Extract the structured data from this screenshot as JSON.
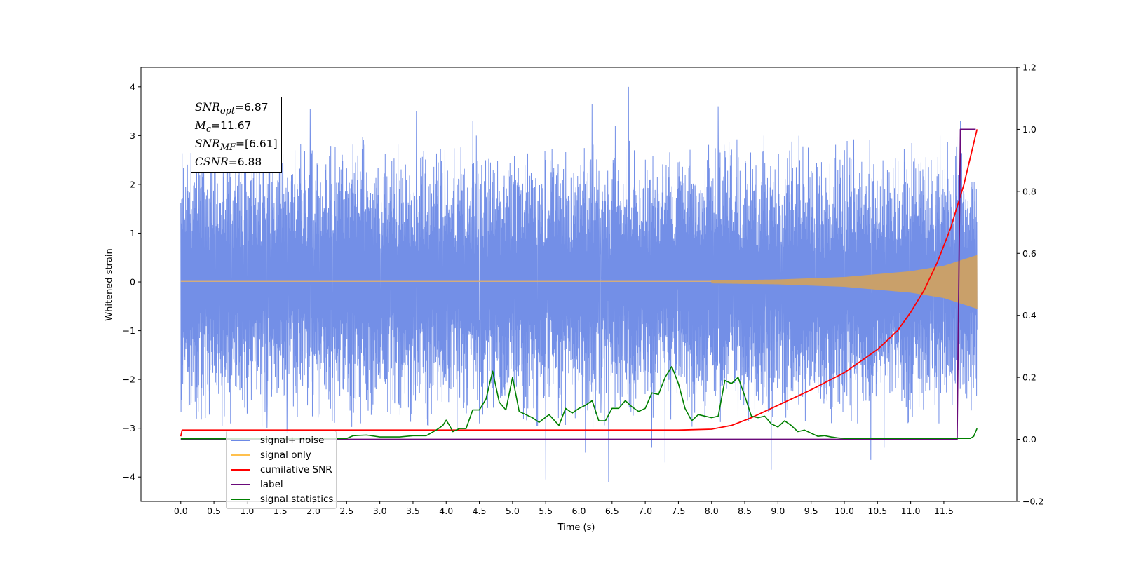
{
  "chart_data": {
    "type": "line",
    "xlabel": "Time (s)",
    "ylabel": "Whitened strain",
    "xlim": [
      -0.6,
      12.6
    ],
    "ylim": [
      -4.5,
      4.4
    ],
    "y2lim": [
      -0.2,
      1.2
    ],
    "x_ticks": [
      "0.0",
      "0.5",
      "1.0",
      "1.5",
      "2.0",
      "2.5",
      "3.0",
      "3.5",
      "4.0",
      "4.5",
      "5.0",
      "5.5",
      "6.0",
      "6.5",
      "7.0",
      "7.5",
      "8.0",
      "8.5",
      "9.0",
      "9.5",
      "10.0",
      "10.5",
      "11.0",
      "11.5"
    ],
    "y_ticks": [
      "4",
      "3",
      "2",
      "1",
      "0",
      "−1",
      "−2",
      "−3",
      "−4"
    ],
    "y2_ticks": [
      "1.2",
      "1.0",
      "0.8",
      "0.6",
      "0.4",
      "0.2",
      "0.0",
      "−0.2"
    ],
    "annotation": {
      "snr_opt": {
        "label": "SNR",
        "sub": "opt",
        "value": "=6.87"
      },
      "mc": {
        "label": "M",
        "sub": "c",
        "value": "=11.67"
      },
      "snr_mf": {
        "label": "SNR",
        "sub": "MF",
        "value": "=[6.61]"
      },
      "csnr": {
        "label": "CSNR",
        "value": "=6.88"
      }
    },
    "legend_position": "lower-left",
    "legend": [
      {
        "label": "signal+ noise",
        "color": "#6c89e6"
      },
      {
        "label": "signal only",
        "color": "#ffc04d"
      },
      {
        "label": "cumilative SNR",
        "color": "#ff0000"
      },
      {
        "label": "label",
        "color": "#6a0a7a"
      },
      {
        "label": "signal statistics",
        "color": "#008000"
      }
    ],
    "series": [
      {
        "name": "signal+ noise",
        "axis": "left",
        "t_range": [
          0.0,
          12.0
        ],
        "approx_amplitude": 2.5,
        "spikes": [
          [
            0.75,
            -2.9
          ],
          [
            1.0,
            -2.7
          ],
          [
            1.3,
            -3.0
          ],
          [
            1.6,
            -3.1
          ],
          [
            1.95,
            3.55
          ],
          [
            3.55,
            3.5
          ],
          [
            4.4,
            3.3
          ],
          [
            4.5,
            -2.9
          ],
          [
            5.5,
            -4.05
          ],
          [
            6.1,
            -3.5
          ],
          [
            6.45,
            -4.1
          ],
          [
            6.55,
            3.2
          ],
          [
            6.75,
            4.0
          ],
          [
            6.2,
            3.65
          ],
          [
            7.1,
            -3.4
          ],
          [
            7.3,
            -3.7
          ],
          [
            8.1,
            3.6
          ],
          [
            8.9,
            -3.85
          ],
          [
            10.2,
            -2.9
          ],
          [
            10.4,
            3.6
          ],
          [
            10.4,
            -3.65
          ],
          [
            10.6,
            -3.4
          ],
          [
            11.75,
            3.3
          ]
        ]
      },
      {
        "name": "signal only",
        "axis": "left",
        "t_range": [
          0.0,
          12.0
        ],
        "envelope": [
          [
            0.0,
            0.01
          ],
          [
            6.0,
            0.02
          ],
          [
            8.0,
            0.03
          ],
          [
            9.0,
            0.05
          ],
          [
            10.0,
            0.1
          ],
          [
            11.0,
            0.22
          ],
          [
            11.5,
            0.33
          ],
          [
            12.0,
            0.55
          ]
        ]
      },
      {
        "name": "cumilative SNR",
        "axis": "right",
        "points": [
          [
            0.0,
            0.01
          ],
          [
            0.02,
            0.03
          ],
          [
            0.5,
            0.03
          ],
          [
            2.0,
            0.03
          ],
          [
            4.0,
            0.03
          ],
          [
            6.0,
            0.03
          ],
          [
            7.0,
            0.03
          ],
          [
            7.5,
            0.03
          ],
          [
            8.0,
            0.033
          ],
          [
            8.3,
            0.045
          ],
          [
            8.6,
            0.07
          ],
          [
            9.0,
            0.11
          ],
          [
            9.5,
            0.16
          ],
          [
            10.0,
            0.215
          ],
          [
            10.5,
            0.29
          ],
          [
            10.8,
            0.35
          ],
          [
            11.0,
            0.41
          ],
          [
            11.2,
            0.48
          ],
          [
            11.4,
            0.57
          ],
          [
            11.6,
            0.68
          ],
          [
            11.8,
            0.82
          ],
          [
            12.0,
            1.0
          ]
        ]
      },
      {
        "name": "label",
        "axis": "right",
        "points": [
          [
            0.0,
            0.0
          ],
          [
            11.65,
            0.0
          ],
          [
            11.7,
            0.0
          ],
          [
            11.75,
            1.0
          ],
          [
            11.98,
            1.0
          ]
        ]
      },
      {
        "name": "signal statistics",
        "axis": "right",
        "points": [
          [
            0.0,
            0.002
          ],
          [
            1.0,
            0.002
          ],
          [
            2.0,
            0.002
          ],
          [
            2.5,
            0.003
          ],
          [
            2.6,
            0.012
          ],
          [
            2.8,
            0.014
          ],
          [
            3.0,
            0.008
          ],
          [
            3.3,
            0.008
          ],
          [
            3.5,
            0.012
          ],
          [
            3.7,
            0.012
          ],
          [
            3.85,
            0.03
          ],
          [
            3.95,
            0.045
          ],
          [
            4.0,
            0.062
          ],
          [
            4.05,
            0.045
          ],
          [
            4.1,
            0.025
          ],
          [
            4.2,
            0.035
          ],
          [
            4.3,
            0.035
          ],
          [
            4.4,
            0.095
          ],
          [
            4.5,
            0.095
          ],
          [
            4.6,
            0.13
          ],
          [
            4.7,
            0.22
          ],
          [
            4.8,
            0.12
          ],
          [
            4.9,
            0.095
          ],
          [
            5.0,
            0.2
          ],
          [
            5.1,
            0.09
          ],
          [
            5.2,
            0.08
          ],
          [
            5.3,
            0.07
          ],
          [
            5.4,
            0.055
          ],
          [
            5.55,
            0.08
          ],
          [
            5.7,
            0.045
          ],
          [
            5.8,
            0.1
          ],
          [
            5.9,
            0.085
          ],
          [
            6.0,
            0.1
          ],
          [
            6.1,
            0.11
          ],
          [
            6.2,
            0.125
          ],
          [
            6.3,
            0.06
          ],
          [
            6.4,
            0.06
          ],
          [
            6.5,
            0.1
          ],
          [
            6.6,
            0.1
          ],
          [
            6.7,
            0.125
          ],
          [
            6.8,
            0.105
          ],
          [
            6.9,
            0.09
          ],
          [
            7.0,
            0.1
          ],
          [
            7.1,
            0.15
          ],
          [
            7.2,
            0.145
          ],
          [
            7.3,
            0.2
          ],
          [
            7.4,
            0.235
          ],
          [
            7.5,
            0.18
          ],
          [
            7.6,
            0.1
          ],
          [
            7.7,
            0.06
          ],
          [
            7.8,
            0.08
          ],
          [
            7.9,
            0.075
          ],
          [
            8.0,
            0.07
          ],
          [
            8.1,
            0.075
          ],
          [
            8.2,
            0.19
          ],
          [
            8.3,
            0.18
          ],
          [
            8.4,
            0.2
          ],
          [
            8.5,
            0.14
          ],
          [
            8.6,
            0.075
          ],
          [
            8.7,
            0.07
          ],
          [
            8.8,
            0.075
          ],
          [
            8.9,
            0.05
          ],
          [
            9.0,
            0.04
          ],
          [
            9.1,
            0.06
          ],
          [
            9.2,
            0.045
          ],
          [
            9.3,
            0.025
          ],
          [
            9.4,
            0.03
          ],
          [
            9.5,
            0.02
          ],
          [
            9.6,
            0.01
          ],
          [
            9.7,
            0.012
          ],
          [
            9.8,
            0.008
          ],
          [
            9.9,
            0.005
          ],
          [
            10.0,
            0.003
          ],
          [
            10.5,
            0.003
          ],
          [
            11.0,
            0.003
          ],
          [
            11.5,
            0.003
          ],
          [
            11.9,
            0.003
          ],
          [
            11.95,
            0.01
          ],
          [
            12.0,
            0.035
          ]
        ]
      }
    ]
  }
}
